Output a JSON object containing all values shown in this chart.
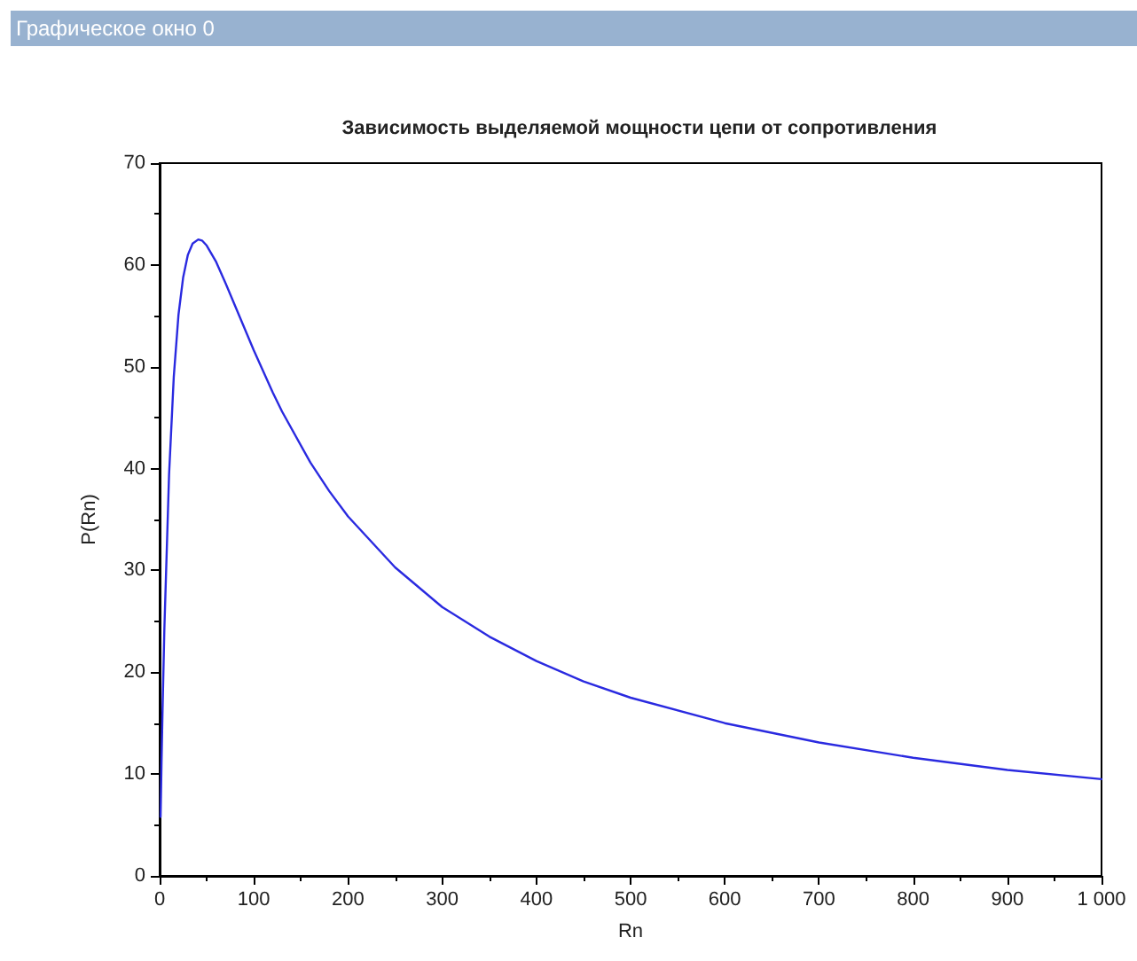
{
  "chart_data": {
    "type": "line",
    "title": "Зависимость выделяемой мощности цепи от сопротивления",
    "xlabel": "Rn",
    "ylabel": "P(Rn)",
    "annotations": [
      "Графическое окно 0"
    ],
    "x": [
      1,
      2,
      3,
      5,
      10,
      15,
      20,
      25,
      30,
      35,
      41,
      45,
      50,
      60,
      70,
      80,
      100,
      120,
      130,
      160,
      180,
      200,
      250,
      300,
      350,
      400,
      450,
      500,
      600,
      700,
      800,
      900,
      1000
    ],
    "series": [
      {
        "color": "#2a2ae0",
        "values": [
          5.8,
          11.1,
          15.9,
          24.2,
          39.4,
          49.0,
          55.1,
          58.8,
          61.0,
          62.1,
          62.5,
          62.4,
          61.9,
          60.3,
          58.2,
          56.0,
          51.6,
          47.5,
          45.6,
          40.6,
          37.8,
          35.3,
          30.3,
          26.4,
          23.5,
          21.1,
          19.1,
          17.5,
          15.0,
          13.1,
          11.6,
          10.4,
          9.5
        ]
      }
    ],
    "xlim": [
      0,
      1000
    ],
    "xticks": [
      0,
      100,
      200,
      300,
      400,
      500,
      600,
      700,
      800,
      900,
      {
        "value": 1000,
        "label": "1 000"
      }
    ],
    "ylim": [
      0,
      70
    ],
    "yticks": [
      0,
      10,
      20,
      30,
      40,
      50,
      60,
      70
    ],
    "grid": false,
    "marker": "none",
    "line_style": "solid"
  }
}
